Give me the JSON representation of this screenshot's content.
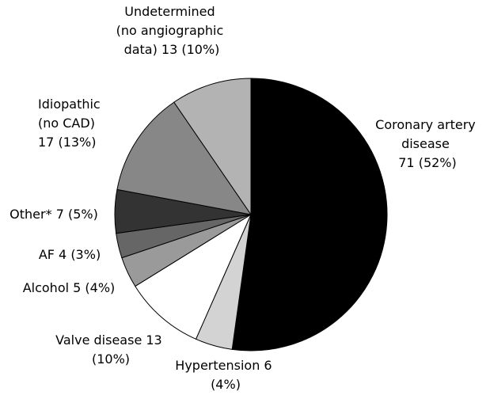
{
  "chart_data": {
    "type": "pie",
    "categories": [
      "Coronary artery disease 71 (52%)",
      "Hypertension 6 (4%)",
      "Valve disease 13 (10%)",
      "Alcohol 5 (4%)",
      "AF 4 (3%)",
      "Other* 7 (5%)",
      "Idiopathic (no CAD) 17 (13%)",
      "Undetermined (no angiographic data) 13 (10%)"
    ],
    "values": [
      71,
      6,
      13,
      5,
      4,
      7,
      17,
      13
    ],
    "colors": [
      "#000000",
      "#d3d3d3",
      "#ffffff",
      "#9a9a9a",
      "#666666",
      "#333333",
      "#878787",
      "#b3b3b3"
    ]
  }
}
